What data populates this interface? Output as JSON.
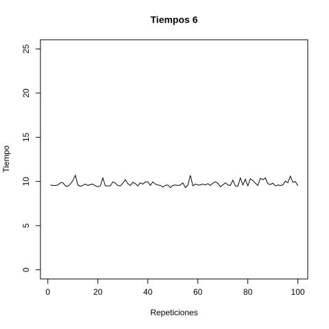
{
  "chart_data": {
    "type": "line",
    "title": "Tiempos 6",
    "x_label": "Repeticiones",
    "y_label": "Tiempo",
    "x": [
      1,
      2,
      3,
      4,
      5,
      6,
      7,
      8,
      9,
      10,
      11,
      12,
      13,
      14,
      15,
      16,
      17,
      18,
      19,
      20,
      21,
      22,
      23,
      24,
      25,
      26,
      27,
      28,
      29,
      30,
      31,
      32,
      33,
      34,
      35,
      36,
      37,
      38,
      39,
      40,
      41,
      42,
      43,
      44,
      45,
      46,
      47,
      48,
      49,
      50,
      51,
      52,
      53,
      54,
      55,
      56,
      57,
      58,
      59,
      60,
      61,
      62,
      63,
      64,
      65,
      66,
      67,
      68,
      69,
      70,
      71,
      72,
      73,
      74,
      75,
      76,
      77,
      78,
      79,
      80,
      81,
      82,
      83,
      84,
      85,
      86,
      87,
      88,
      89,
      90,
      91,
      92,
      93,
      94,
      95,
      96,
      97,
      98,
      99,
      100
    ],
    "series": [
      {
        "name": "Tiempo",
        "color": "#000000",
        "values": [
          9.6,
          9.55,
          9.55,
          9.6,
          9.85,
          9.85,
          9.5,
          9.45,
          9.7,
          10.1,
          10.7,
          9.6,
          9.45,
          9.55,
          9.7,
          9.55,
          9.65,
          9.7,
          9.5,
          9.4,
          9.5,
          10.4,
          9.5,
          9.5,
          9.5,
          9.95,
          9.8,
          9.55,
          9.5,
          9.8,
          10.2,
          9.75,
          9.55,
          9.9,
          9.75,
          9.5,
          9.85,
          9.7,
          9.95,
          9.95,
          9.55,
          9.95,
          9.7,
          9.6,
          9.55,
          9.35,
          9.55,
          9.6,
          9.3,
          9.55,
          9.6,
          9.55,
          9.6,
          9.85,
          9.3,
          9.6,
          10.7,
          9.5,
          9.7,
          9.6,
          9.6,
          9.7,
          9.6,
          9.75,
          9.55,
          9.8,
          9.95,
          9.8,
          9.4,
          9.6,
          9.85,
          9.6,
          9.55,
          10.15,
          9.5,
          9.45,
          10.4,
          9.6,
          10.25,
          9.5,
          10.3,
          10.1,
          9.8,
          9.55,
          10.35,
          10.2,
          10.4,
          9.75,
          9.65,
          9.8,
          9.5,
          9.6,
          9.55,
          9.6,
          10.05,
          9.85,
          10.6,
          9.9,
          10.0,
          9.5
        ]
      }
    ],
    "xlim": [
      -2.96,
      103.96
    ],
    "ylim": [
      -1.04,
      26.04
    ],
    "xticks": [
      0,
      20,
      40,
      60,
      80,
      100
    ],
    "yticks": [
      0,
      5,
      10,
      15,
      20,
      25
    ]
  }
}
